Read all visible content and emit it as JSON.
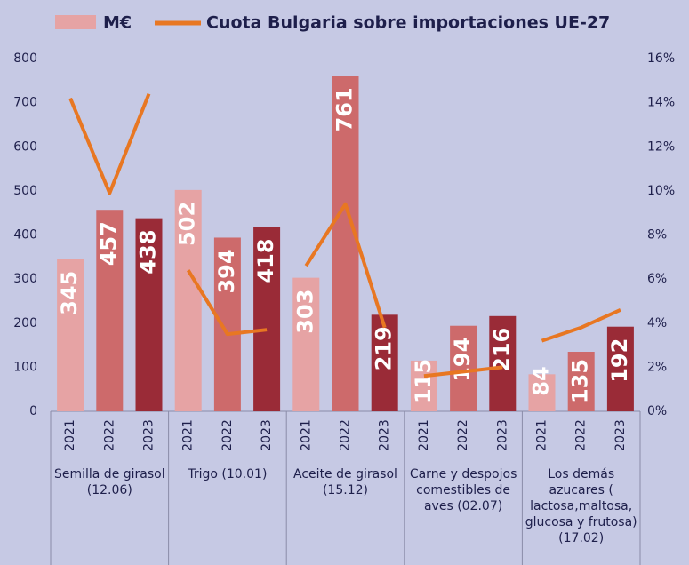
{
  "chart_data": {
    "type": "bar",
    "legend": "top",
    "categories": [
      "2021",
      "2022",
      "2023",
      "2021",
      "2022",
      "2023",
      "2021",
      "2022",
      "2023",
      "2021",
      "2022",
      "2023",
      "2021",
      "2022",
      "2023"
    ],
    "groups": [
      "Semilla de girasol (12.06)",
      "Trigo (10.01)",
      "Aceite de girasol (15.12)",
      "Carne y despojos comestibles de aves (02.07)",
      "Los demás azucares ( lactosa,maltosa, glucosa y frutosa) (17.02)"
    ],
    "bar_colors": [
      "#e6a3a4",
      "#cd6a6b",
      "#9a2b37"
    ],
    "series": [
      {
        "name": "M€",
        "type": "bar",
        "color": "#e6a3a4",
        "values": [
          345,
          457,
          438,
          502,
          394,
          418,
          303,
          761,
          219,
          115,
          194,
          216,
          84,
          135,
          192
        ]
      },
      {
        "name": "Cuota Bulgaria sobre importaciones UE-27",
        "type": "line",
        "axis": "y2",
        "color": "#e87722",
        "values": [
          14.2,
          9.9,
          14.4,
          6.4,
          3.5,
          3.7,
          6.6,
          9.4,
          3.8,
          1.6,
          1.8,
          2.0,
          3.2,
          3.8,
          4.6
        ]
      }
    ],
    "ylim": [
      0,
      800
    ],
    "yticks": [
      0,
      100,
      200,
      300,
      400,
      500,
      600,
      700,
      800
    ],
    "y2lim": [
      0,
      16
    ],
    "y2ticks": [
      {
        "value": 0,
        "label": "0%"
      },
      {
        "value": 2,
        "label": "2%"
      },
      {
        "value": 4,
        "label": "4%"
      },
      {
        "value": 6,
        "label": "6%"
      },
      {
        "value": 8,
        "label": "8%"
      },
      {
        "value": 10,
        "label": "10%"
      },
      {
        "value": 12,
        "label": "12%"
      },
      {
        "value": 14,
        "label": "14%"
      },
      {
        "value": 16,
        "label": "16%"
      }
    ]
  }
}
